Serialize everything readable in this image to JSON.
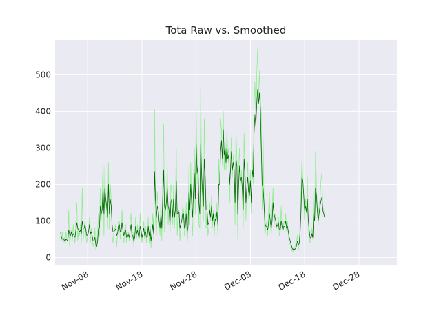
{
  "chart_data": {
    "type": "line",
    "title": "Tota Raw vs. Smoothed",
    "xlabel": "",
    "ylabel": "",
    "x_range": [
      "2024-11-02",
      "2025-01-04"
    ],
    "ylim": [
      -20,
      595
    ],
    "x_ticks": [
      {
        "date": "2024-11-08",
        "label": "Nov-08"
      },
      {
        "date": "2024-11-18",
        "label": "Nov-18"
      },
      {
        "date": "2024-11-28",
        "label": "Nov-28"
      },
      {
        "date": "2024-12-08",
        "label": "Dec-08"
      },
      {
        "date": "2024-12-18",
        "label": "Dec-18"
      },
      {
        "date": "2024-12-28",
        "label": "Dec-28"
      }
    ],
    "y_ticks": [
      0,
      100,
      200,
      300,
      400,
      500
    ],
    "grid": true,
    "background": "#eaeaf2",
    "series": [
      {
        "role": "raw",
        "color": "#90ee90",
        "x_start": "2024-11-03",
        "step_hours": 4,
        "values": [
          60,
          45,
          70,
          40,
          55,
          35,
          70,
          50,
          40,
          130,
          30,
          60,
          75,
          45,
          90,
          55,
          40,
          100,
          150,
          45,
          75,
          60,
          90,
          40,
          190,
          45,
          80,
          100,
          60,
          40,
          60,
          75,
          110,
          40,
          80,
          55,
          30,
          40,
          80,
          20,
          35,
          70,
          120,
          60,
          190,
          100,
          160,
          270,
          60,
          250,
          150,
          130,
          80,
          260,
          75,
          200,
          160,
          60,
          40,
          70,
          80,
          90,
          30,
          60,
          100,
          100,
          50,
          70,
          130,
          60,
          40,
          80,
          90,
          40,
          55,
          70,
          45,
          100,
          120,
          40,
          70,
          30,
          60,
          110,
          50,
          90,
          55,
          50,
          120,
          80,
          40,
          70,
          100,
          50,
          85,
          40,
          60,
          110,
          40,
          95,
          25,
          80,
          120,
          50,
          405,
          100,
          60,
          180,
          140,
          90,
          60,
          160,
          45,
          230,
          365,
          70,
          120,
          160,
          250,
          90,
          140,
          60,
          200,
          180,
          90,
          200,
          80,
          150,
          300,
          60,
          120,
          130,
          45,
          90,
          100,
          140,
          130,
          60,
          80,
          150,
          35,
          80,
          250,
          90,
          260,
          120,
          60,
          200,
          300,
          120,
          415,
          200,
          300,
          90,
          80,
          465,
          200,
          150,
          100,
          380,
          220,
          80,
          130,
          60,
          80,
          150,
          100,
          170,
          80,
          130,
          60,
          120,
          100,
          150,
          60,
          270,
          200,
          380,
          350,
          250,
          400,
          240,
          320,
          240,
          350,
          280,
          300,
          150,
          270,
          330,
          220,
          280,
          250,
          90,
          350,
          270,
          50,
          240,
          300,
          200,
          240,
          180,
          80,
          340,
          240,
          100,
          200,
          260,
          160,
          170,
          240,
          120,
          290,
          200,
          420,
          480,
          370,
          500,
          570,
          430,
          510,
          440,
          390,
          130,
          330,
          150,
          60,
          80,
          100,
          60,
          120,
          180,
          90,
          60,
          130,
          190,
          80,
          120,
          100,
          80,
          90,
          110,
          60,
          70,
          140,
          80,
          70,
          100,
          90,
          120,
          70,
          100,
          60,
          40,
          35,
          30,
          20,
          15,
          30,
          25,
          35,
          45,
          60,
          20,
          40,
          100,
          180,
          270,
          210,
          160,
          100,
          160,
          120,
          220,
          80,
          60,
          40,
          50,
          80,
          50,
          180,
          100,
          290,
          200,
          120,
          90,
          140,
          160,
          210,
          230,
          140,
          130,
          110
        ]
      },
      {
        "role": "smoothed",
        "color": "#006400",
        "x_start": "2024-11-03",
        "step_hours": 4,
        "values": [
          68,
          55,
          50,
          52,
          48,
          45,
          50,
          48,
          45,
          75,
          65,
          60,
          70,
          58,
          65,
          60,
          55,
          75,
          95,
          80,
          75,
          70,
          75,
          65,
          100,
          80,
          80,
          90,
          75,
          60,
          62,
          70,
          90,
          65,
          70,
          60,
          45,
          45,
          55,
          35,
          30,
          45,
          80,
          80,
          140,
          120,
          130,
          190,
          120,
          190,
          160,
          140,
          110,
          200,
          120,
          160,
          140,
          90,
          70,
          70,
          75,
          78,
          60,
          65,
          85,
          90,
          70,
          72,
          95,
          75,
          60,
          70,
          75,
          55,
          58,
          62,
          55,
          75,
          90,
          60,
          60,
          45,
          55,
          85,
          65,
          75,
          60,
          58,
          85,
          75,
          55,
          65,
          80,
          60,
          70,
          55,
          58,
          85,
          60,
          78,
          45,
          65,
          90,
          65,
          235,
          160,
          110,
          140,
          130,
          100,
          80,
          120,
          80,
          160,
          240,
          140,
          130,
          150,
          190,
          140,
          130,
          90,
          150,
          160,
          110,
          160,
          110,
          130,
          210,
          120,
          120,
          125,
          80,
          90,
          100,
          120,
          120,
          80,
          85,
          120,
          70,
          85,
          180,
          130,
          200,
          150,
          110,
          180,
          230,
          160,
          310,
          230,
          250,
          150,
          120,
          310,
          230,
          180,
          140,
          270,
          220,
          130,
          130,
          90,
          95,
          130,
          110,
          140,
          100,
          120,
          85,
          105,
          100,
          125,
          90,
          200,
          200,
          290,
          320,
          270,
          350,
          280,
          300,
          260,
          300,
          270,
          280,
          200,
          240,
          290,
          240,
          260,
          240,
          150,
          270,
          250,
          120,
          200,
          250,
          210,
          220,
          190,
          130,
          270,
          230,
          150,
          190,
          220,
          180,
          170,
          210,
          150,
          240,
          220,
          340,
          390,
          360,
          420,
          460,
          420,
          450,
          410,
          300,
          200,
          190,
          150,
          95,
          85,
          85,
          75,
          90,
          120,
          100,
          80,
          100,
          150,
          120,
          110,
          100,
          85,
          88,
          95,
          75,
          75,
          100,
          85,
          75,
          85,
          85,
          100,
          80,
          85,
          70,
          55,
          45,
          35,
          28,
          22,
          24,
          22,
          25,
          32,
          45,
          35,
          38,
          70,
          130,
          220,
          210,
          170,
          130,
          140,
          125,
          160,
          105,
          75,
          55,
          52,
          65,
          55,
          120,
          100,
          190,
          170,
          130,
          100,
          120,
          140,
          155,
          165,
          130,
          120,
          110
        ]
      }
    ]
  }
}
